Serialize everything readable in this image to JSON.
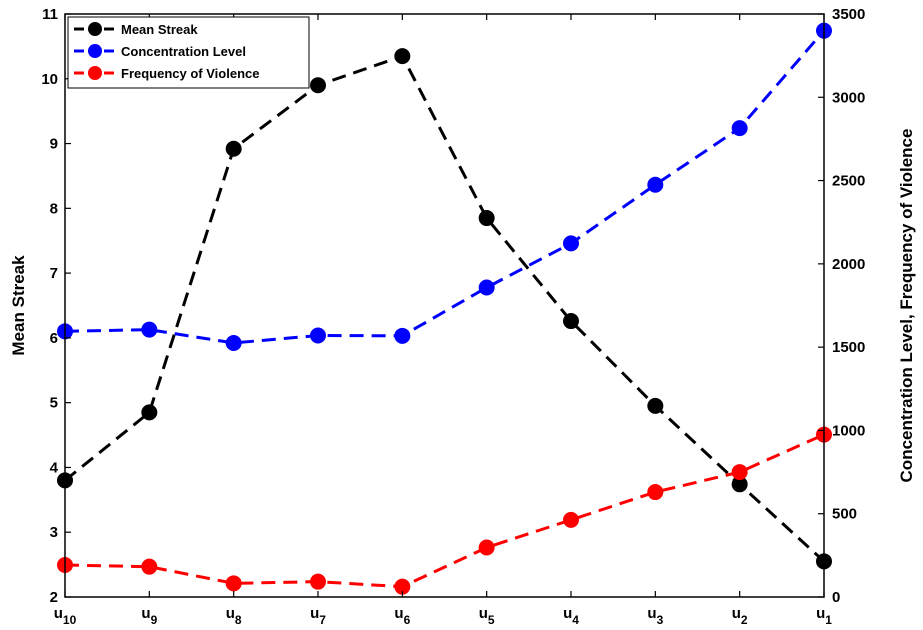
{
  "chart_data": {
    "type": "line",
    "categories": [
      {
        "base": "u",
        "sub": "10"
      },
      {
        "base": "u",
        "sub": "9"
      },
      {
        "base": "u",
        "sub": "8"
      },
      {
        "base": "u",
        "sub": "7"
      },
      {
        "base": "u",
        "sub": "6"
      },
      {
        "base": "u",
        "sub": "5"
      },
      {
        "base": "u",
        "sub": "4"
      },
      {
        "base": "u",
        "sub": "3"
      },
      {
        "base": "u",
        "sub": "2"
      },
      {
        "base": "u",
        "sub": "1"
      }
    ],
    "y_left": {
      "label": "Mean Streak",
      "lim": [
        2,
        11
      ],
      "ticks": [
        "2",
        "3",
        "4",
        "5",
        "6",
        "7",
        "8",
        "9",
        "10",
        "11"
      ]
    },
    "y_right": {
      "label": "Concentration Level, Frequency of Violence",
      "lim": [
        0,
        3500
      ],
      "ticks": [
        "0",
        "500",
        "1000",
        "1500",
        "2000",
        "2500",
        "3000",
        "3500"
      ]
    },
    "series": [
      {
        "name": "Mean Streak",
        "axis": "left",
        "color": "#000000",
        "values": [
          3.8,
          4.85,
          8.92,
          9.9,
          10.35,
          7.85,
          6.26,
          4.95,
          3.74,
          2.55
        ]
      },
      {
        "name": "Concentration Level",
        "axis": "right",
        "color": "#0000ff",
        "values": [
          1595,
          1605,
          1525,
          1570,
          1568,
          1858,
          2123,
          2475,
          2815,
          3400
        ]
      },
      {
        "name": "Frequency of Violence",
        "axis": "right",
        "color": "#ff0000",
        "values": [
          192,
          182,
          82,
          92,
          62,
          297,
          463,
          630,
          750,
          975
        ]
      }
    ],
    "legend_position": "top-left",
    "grid": false
  }
}
